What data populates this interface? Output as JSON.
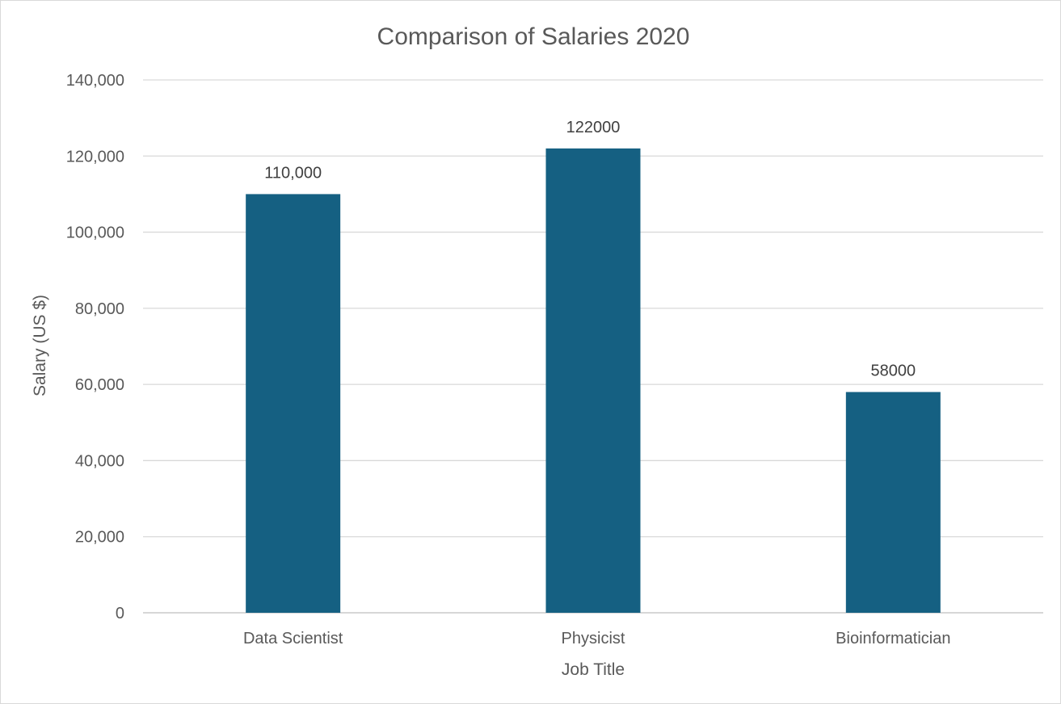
{
  "chart_data": {
    "type": "bar",
    "title": "Comparison of Salaries 2020",
    "xlabel": "Job Title",
    "ylabel": "Salary (US $)",
    "categories": [
      "Data Scientist",
      "Physicist",
      "Bioinformatician"
    ],
    "values": [
      110000,
      122000,
      58000
    ],
    "data_labels": [
      "110,000",
      "122000",
      "58000"
    ],
    "ylim": [
      0,
      140000
    ],
    "yticks": [
      0,
      20000,
      40000,
      60000,
      80000,
      100000,
      120000,
      140000
    ],
    "ytick_labels": [
      "0",
      "20,000",
      "40,000",
      "60,000",
      "80,000",
      "100,000",
      "120,000",
      "140,000"
    ],
    "grid": true,
    "legend": "none",
    "bar_color": "#156082"
  }
}
